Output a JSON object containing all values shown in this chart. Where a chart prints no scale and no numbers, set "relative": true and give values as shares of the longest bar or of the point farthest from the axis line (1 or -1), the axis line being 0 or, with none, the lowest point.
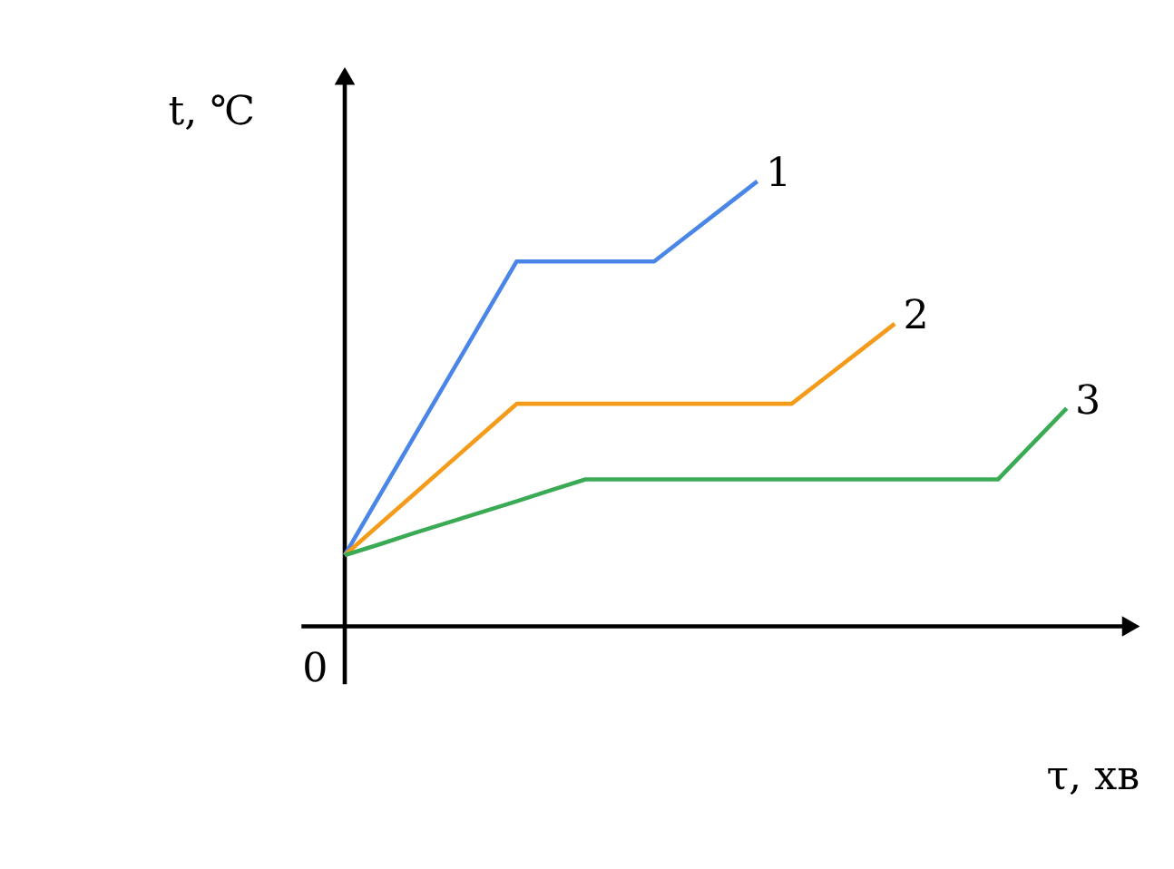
{
  "chart_data": {
    "type": "line",
    "relative": true,
    "xlabel": "τ, хв",
    "ylabel": "t, ℃",
    "annotations": [
      "0"
    ],
    "legend": false,
    "grid": false,
    "marker": "none",
    "line_style": "solid",
    "categories": [
      null,
      null,
      null,
      null,
      null,
      null,
      null,
      null,
      null,
      null,
      null,
      null,
      null,
      null,
      null,
      null,
      null,
      null,
      null,
      null,
      null,
      null
    ],
    "series": [
      {
        "name": "1",
        "color": "#4a86e8",
        "values": [
          0.16,
          0.292,
          0.424,
          0.556,
          0.688,
          0.82,
          0.82,
          0.82,
          0.82,
          0.82,
          0.88,
          0.94,
          1.0,
          null,
          null,
          null,
          null,
          null,
          null,
          null,
          null,
          null
        ]
      },
      {
        "name": "2",
        "color": "#f59b1a",
        "values": [
          0.16,
          0.228,
          0.296,
          0.364,
          0.432,
          0.5,
          0.5,
          0.5,
          0.5,
          0.5,
          0.5,
          0.5,
          0.5,
          0.5,
          0.56,
          0.62,
          0.68,
          null,
          null,
          null,
          null,
          null
        ]
      },
      {
        "name": "3",
        "color": "#3aaa55",
        "values": [
          0.16,
          0.184,
          0.209,
          0.233,
          0.257,
          0.281,
          0.306,
          0.33,
          0.33,
          0.33,
          0.33,
          0.33,
          0.33,
          0.33,
          0.33,
          0.33,
          0.33,
          0.33,
          0.33,
          0.33,
          0.41,
          0.49
        ]
      }
    ]
  }
}
